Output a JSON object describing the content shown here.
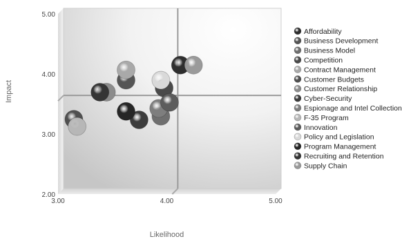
{
  "chart_data": {
    "type": "scatter",
    "title": "",
    "xlabel": "Likelihood",
    "ylabel": "Impact",
    "xlim": [
      3.0,
      5.0
    ],
    "ylim": [
      2.0,
      5.0
    ],
    "x_ticks": [
      "3.00",
      "4.00",
      "5.00"
    ],
    "y_ticks": [
      "2.00",
      "3.00",
      "4.00",
      "5.00"
    ],
    "quadrant_lines": {
      "x": 4.05,
      "y": 3.55
    },
    "grid": false,
    "legend_position": "right",
    "series": [
      {
        "name": "Affordability",
        "x": 4.1,
        "y": 4.1,
        "color": "#2e2e2e"
      },
      {
        "name": "Business Development",
        "x": 3.6,
        "y": 3.85,
        "color": "#555555"
      },
      {
        "name": "Business Model",
        "x": 3.92,
        "y": 3.25,
        "color": "#6f6f6f"
      },
      {
        "name": "Competition",
        "x": 3.95,
        "y": 3.72,
        "color": "#4a4a4a"
      },
      {
        "name": "Contract Management",
        "x": 3.6,
        "y": 4.02,
        "color": "#a9a9a9"
      },
      {
        "name": "Customer Budgets",
        "x": 3.12,
        "y": 3.2,
        "color": "#505050"
      },
      {
        "name": "Customer Relationship",
        "x": 3.42,
        "y": 3.65,
        "color": "#8c8c8c"
      },
      {
        "name": "Cyber-Security",
        "x": 3.72,
        "y": 3.19,
        "color": "#3c3c3c"
      },
      {
        "name": "Espionage and Intel Collection",
        "x": 3.9,
        "y": 3.38,
        "color": "#7e7e7e"
      },
      {
        "name": "F-35 Program",
        "x": 3.15,
        "y": 3.08,
        "color": "#b7b7b7"
      },
      {
        "name": "Innovation",
        "x": 4.0,
        "y": 3.48,
        "color": "#5c5c5c"
      },
      {
        "name": "Policy and Legislation",
        "x": 3.92,
        "y": 3.85,
        "color": "#d9d9d9"
      },
      {
        "name": "Program Management",
        "x": 3.6,
        "y": 3.33,
        "color": "#262626"
      },
      {
        "name": "Recruiting and Retention",
        "x": 3.36,
        "y": 3.65,
        "color": "#353535"
      },
      {
        "name": "Supply Chain",
        "x": 4.22,
        "y": 4.1,
        "color": "#9a9a9a"
      }
    ]
  }
}
